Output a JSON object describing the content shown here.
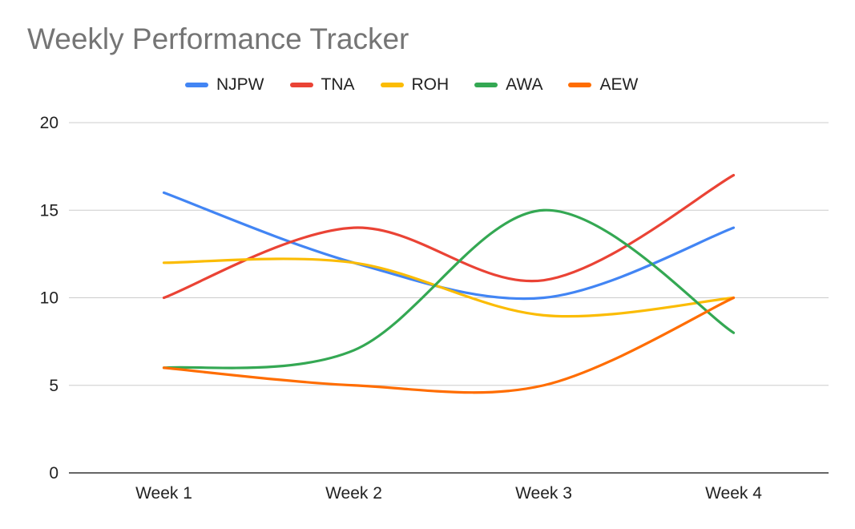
{
  "chart_data": {
    "type": "line",
    "title": "Weekly Performance Tracker",
    "xlabel": "",
    "ylabel": "",
    "categories": [
      "Week 1",
      "Week 2",
      "Week 3",
      "Week 4"
    ],
    "ylim": [
      0,
      20
    ],
    "yticks": [
      0,
      5,
      10,
      15,
      20
    ],
    "grid": true,
    "legend_position": "top",
    "smooth": true,
    "series": [
      {
        "name": "NJPW",
        "color": "#4285F4",
        "values": [
          16,
          12,
          10,
          14
        ]
      },
      {
        "name": "TNA",
        "color": "#EA4335",
        "values": [
          10,
          14,
          11,
          17
        ]
      },
      {
        "name": "ROH",
        "color": "#FBBC04",
        "values": [
          12,
          12,
          9,
          10
        ]
      },
      {
        "name": "AWA",
        "color": "#34A853",
        "values": [
          6,
          7,
          15,
          8
        ]
      },
      {
        "name": "AEW",
        "color": "#FF6D01",
        "values": [
          6,
          5,
          5,
          10
        ]
      }
    ]
  }
}
